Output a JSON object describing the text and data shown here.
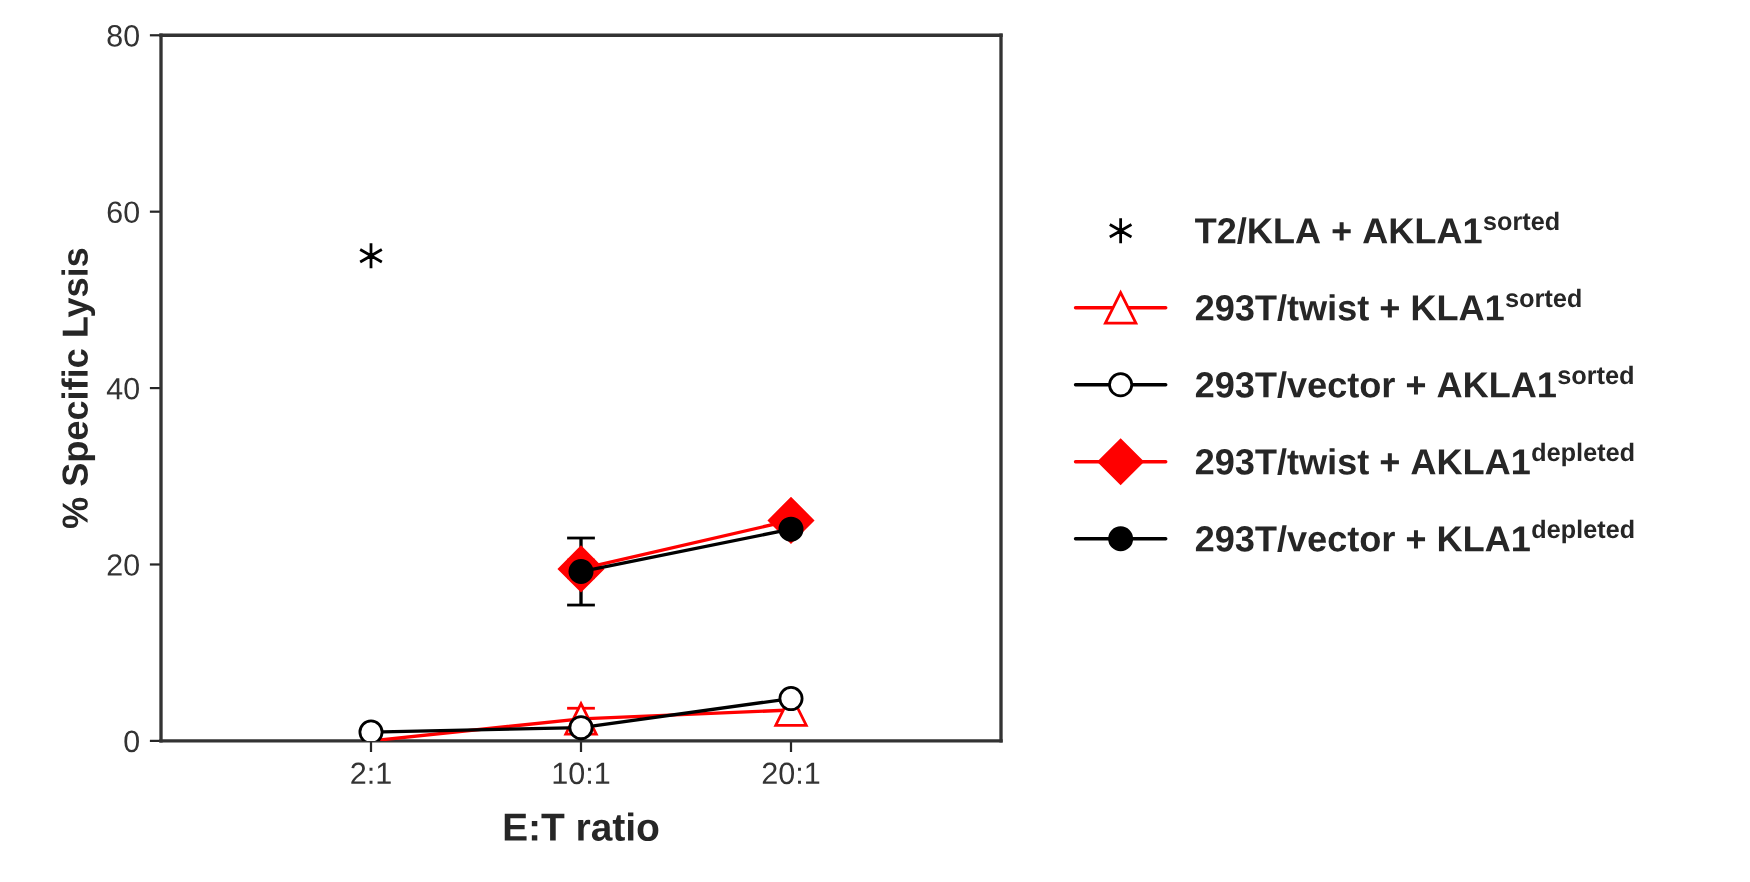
{
  "chart_data": {
    "type": "line",
    "xlabel": "E:T ratio",
    "ylabel": "% Specific Lysis",
    "categories": [
      "2:1",
      "10:1",
      "20:1"
    ],
    "ylim": [
      0,
      80
    ],
    "yticks": [
      0,
      20,
      40,
      60,
      80
    ],
    "grid": false,
    "legend": "right",
    "series": [
      {
        "name": "T2/KLA + AKLA1$^{sorted}$",
        "type": "scatter",
        "marker": "cross",
        "color": "#000000",
        "values": [
          55,
          null,
          null
        ]
      },
      {
        "name": "293T/twist + KLA1$^{sorted}$",
        "marker": "triangle",
        "color": "#ff0000",
        "values": [
          0,
          2.5,
          3.5
        ],
        "errors": [
          null,
          1.2,
          null
        ]
      },
      {
        "name": "293T/vector + AKLA1$^{sorted}$",
        "marker": "circle",
        "color": "#000000",
        "values": [
          1,
          1.5,
          4.8
        ]
      },
      {
        "name": "293T/twist + AKLA1$^{depleted}$",
        "marker": "diamond",
        "color": "#ff0000",
        "values": [
          null,
          19.5,
          25
        ],
        "errors": [
          null,
          1,
          null
        ]
      },
      {
        "name": "293T/vector + KLA1$^{depleted}$",
        "marker": "circle",
        "color": "#000000",
        "values": [
          null,
          19.2,
          24
        ],
        "errors": [
          null,
          3.8,
          null
        ]
      }
    ]
  }
}
